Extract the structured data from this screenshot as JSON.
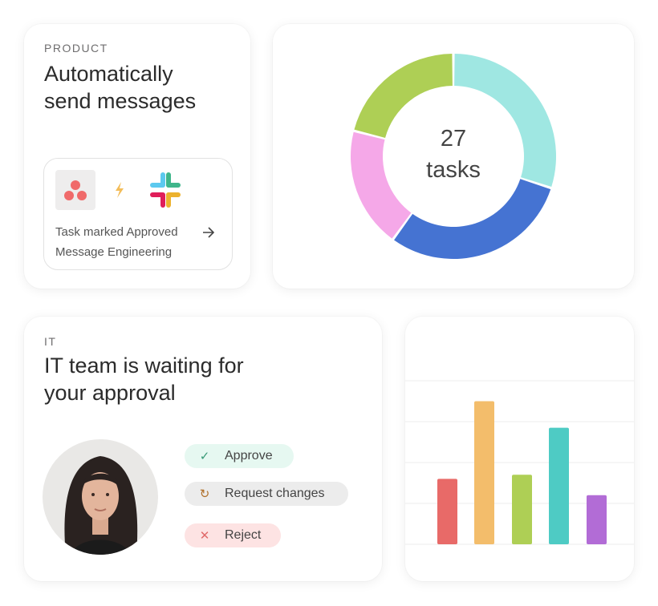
{
  "product_card": {
    "eyebrow": "PRODUCT",
    "title_line1": "Automatically",
    "title_line2": "send messages",
    "integration": {
      "source_icon": "asana-logo-icon",
      "connector_icon": "lightning-icon",
      "target_icon": "slack-logo-icon",
      "line1": "Task marked Approved",
      "line2": "Message Engineering",
      "arrow_icon": "arrow-right-icon"
    }
  },
  "donut_card": {
    "center_number": "27",
    "center_label": "tasks"
  },
  "it_card": {
    "eyebrow": "IT",
    "title_line1": "IT team is waiting for",
    "title_line2": "your approval",
    "actions": [
      {
        "label": "Approve",
        "icon": "check-icon",
        "bg": "#e6f8f1",
        "icon_color": "#3a9a78"
      },
      {
        "label": "Request changes",
        "icon": "refresh-icon",
        "bg": "#ececec",
        "icon_color": "#b0702a"
      },
      {
        "label": "Reject",
        "icon": "x-icon",
        "bg": "#fde3e3",
        "icon_color": "#e06a6a"
      }
    ]
  },
  "chart_data": [
    {
      "type": "pie",
      "variant": "donut",
      "values": [
        0.3,
        0.3,
        0.19,
        0.21
      ],
      "colors": [
        "#9fe7e2",
        "#4573d2",
        "#f5a8e8",
        "#aecf55"
      ]
    },
    {
      "type": "bar",
      "values": [
        1.6,
        3.5,
        1.7,
        2.85,
        1.2
      ],
      "colors": [
        "#e86a68",
        "#f3bd6b",
        "#aecf55",
        "#4ecbc4",
        "#b26cd6"
      ],
      "ylim": [
        0,
        4
      ],
      "grid": true
    }
  ]
}
